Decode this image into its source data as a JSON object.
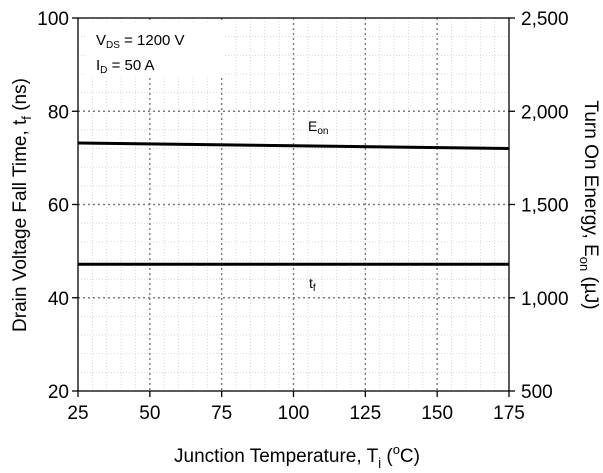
{
  "chart_data": {
    "type": "line",
    "x": [
      25,
      50,
      75,
      100,
      125,
      150,
      175
    ],
    "xlabel": "Junction Temperature, T",
    "xlabel_sub": "j",
    "xlabel_tail": " (",
    "xlabel_sup": "o",
    "xlabel_end": "C)",
    "ylabel_left": "Drain Voltage Fall Time, t",
    "ylabel_left_sub": "f",
    "ylabel_left_end": " (ns)",
    "ylabel_right": "Turn On Energy, E",
    "ylabel_right_sub": "on",
    "ylabel_right_end": " (µJ)",
    "xlim": [
      25,
      175
    ],
    "ylim_left": [
      20,
      100
    ],
    "ylim_right": [
      500,
      2500
    ],
    "xticks": [
      "25",
      "50",
      "75",
      "100",
      "125",
      "150",
      "175"
    ],
    "yticks_left": [
      "20",
      "40",
      "60",
      "80",
      "100"
    ],
    "yticks_right": [
      "500",
      "1,000",
      "1,500",
      "2,000",
      "2,500"
    ],
    "grid": true,
    "conditions": {
      "vds_main": "V",
      "vds_sub": "DS",
      "vds_value": " = 1200 V",
      "id_main": "I",
      "id_sub": "D",
      "id_value": " = 50 A"
    },
    "series": [
      {
        "name": "E",
        "name_sub": "on",
        "axis": "right",
        "x": [
          25,
          100,
          175
        ],
        "values": [
          1830,
          1815,
          1800
        ]
      },
      {
        "name": "t",
        "name_sub": "f",
        "axis": "left",
        "x": [
          25,
          100,
          175
        ],
        "values": [
          47.2,
          47.2,
          47.2
        ]
      }
    ]
  }
}
